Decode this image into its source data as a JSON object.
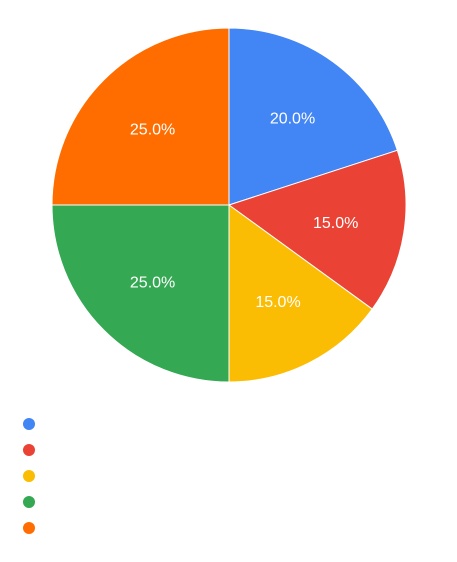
{
  "chart_data": {
    "type": "pie",
    "title": "",
    "categories": [
      "",
      "",
      "",
      "",
      ""
    ],
    "values": [
      20,
      15,
      15,
      25,
      25
    ],
    "labels": [
      "20.0%",
      "15.0%",
      "15.0%",
      "25.0%",
      "25.0%"
    ],
    "colors": [
      "#4285f4",
      "#ea4335",
      "#fbbc04",
      "#34a853",
      "#ff6d01"
    ],
    "start_angle": "12 o'clock, clockwise",
    "legend": "bottom-left"
  }
}
